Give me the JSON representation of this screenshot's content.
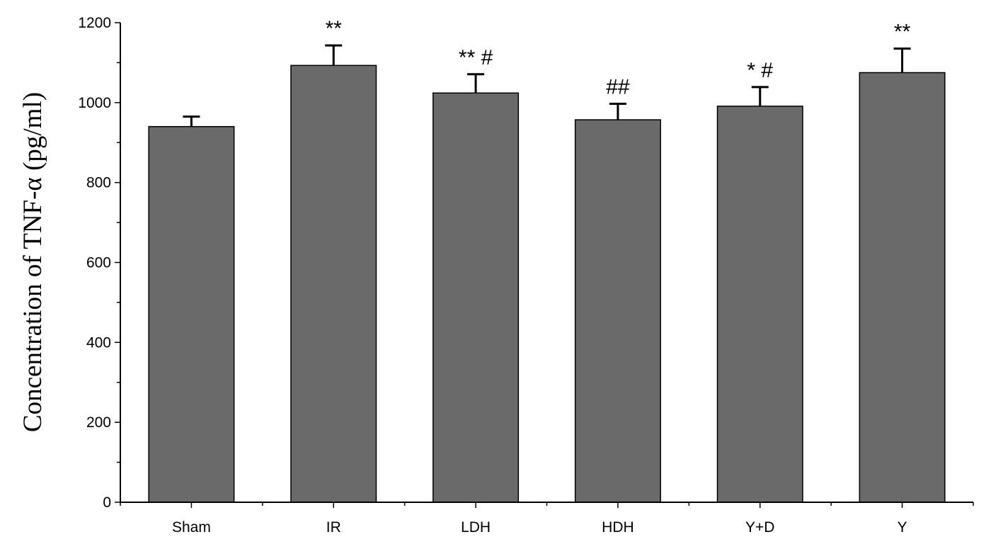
{
  "chart_data": {
    "type": "bar",
    "title": "",
    "xlabel": "",
    "ylabel": "Concentration of TNF-α (pg/ml)",
    "ylim": [
      0,
      1200
    ],
    "yticks": [
      0,
      200,
      400,
      600,
      800,
      1000,
      1200
    ],
    "categories": [
      "Sham",
      "IR",
      "LDH",
      "HDH",
      "Y+D",
      "Y"
    ],
    "values": [
      940,
      1093,
      1024,
      957,
      991,
      1075
    ],
    "errors": [
      25,
      50,
      47,
      40,
      48,
      60
    ],
    "annotations": [
      "",
      "**",
      "**  #",
      "##",
      "* #",
      "**"
    ],
    "bar_color": "#6a6a6a",
    "grid": false,
    "legend": "none"
  }
}
